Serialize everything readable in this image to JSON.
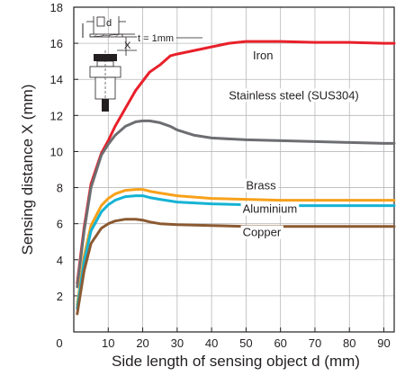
{
  "chart_data": {
    "type": "line",
    "title": "",
    "xlabel": "Side length of sensing object d (mm)",
    "ylabel": "Sensing distance X (mm)",
    "xlim": [
      0,
      93
    ],
    "ylim": [
      0,
      18
    ],
    "x_ticks": [
      0,
      10,
      20,
      30,
      40,
      50,
      60,
      70,
      80,
      90
    ],
    "y_ticks": [
      2,
      4,
      6,
      8,
      10,
      12,
      14,
      16,
      18
    ],
    "grid": true,
    "legend": "none",
    "series": [
      {
        "name": "Iron",
        "color": "#e8202a",
        "x": [
          1,
          3,
          5,
          8,
          10,
          12,
          15,
          18,
          20,
          22,
          25,
          28,
          30,
          35,
          40,
          45,
          50,
          55,
          60,
          70,
          80,
          90,
          93
        ],
        "y": [
          2.7,
          5.8,
          8.2,
          9.9,
          10.6,
          11.4,
          12.4,
          13.4,
          13.9,
          14.4,
          14.8,
          15.3,
          15.4,
          15.6,
          15.8,
          16.0,
          16.1,
          16.1,
          16.1,
          16.05,
          16.05,
          16.0,
          16.0
        ]
      },
      {
        "name": "Stainless steel (SUS304)",
        "color": "#6d6e71",
        "x": [
          1,
          3,
          5,
          8,
          10,
          12,
          15,
          18,
          20,
          22,
          25,
          28,
          30,
          35,
          40,
          50,
          60,
          70,
          80,
          90,
          93
        ],
        "y": [
          2.5,
          5.6,
          8.0,
          9.8,
          10.4,
          10.9,
          11.4,
          11.65,
          11.7,
          11.7,
          11.6,
          11.4,
          11.2,
          10.9,
          10.75,
          10.65,
          10.6,
          10.55,
          10.5,
          10.45,
          10.45
        ]
      },
      {
        "name": "Brass",
        "color": "#f7a11a",
        "x": [
          1,
          3,
          5,
          8,
          10,
          12,
          15,
          18,
          20,
          22,
          25,
          30,
          40,
          50,
          60,
          70,
          80,
          90,
          93
        ],
        "y": [
          1.5,
          4.2,
          5.9,
          7.0,
          7.4,
          7.65,
          7.85,
          7.9,
          7.9,
          7.8,
          7.7,
          7.55,
          7.4,
          7.35,
          7.3,
          7.3,
          7.3,
          7.3,
          7.3
        ]
      },
      {
        "name": "Aluminium",
        "color": "#15b3d4",
        "x": [
          1,
          3,
          5,
          8,
          10,
          12,
          15,
          18,
          20,
          22,
          25,
          30,
          40,
          50,
          60,
          70,
          80,
          90,
          93
        ],
        "y": [
          1.3,
          3.9,
          5.6,
          6.65,
          7.05,
          7.3,
          7.5,
          7.55,
          7.55,
          7.45,
          7.35,
          7.2,
          7.1,
          7.05,
          7.0,
          7.0,
          7.0,
          7.0,
          7.0
        ]
      },
      {
        "name": "Copper",
        "color": "#8b5a32",
        "x": [
          1,
          3,
          5,
          8,
          10,
          12,
          15,
          18,
          20,
          22,
          25,
          30,
          40,
          50,
          60,
          70,
          80,
          90,
          93
        ],
        "y": [
          1.0,
          3.4,
          4.9,
          5.75,
          6.0,
          6.15,
          6.25,
          6.25,
          6.2,
          6.1,
          6.0,
          5.95,
          5.9,
          5.85,
          5.85,
          5.85,
          5.85,
          5.85,
          5.85
        ]
      }
    ],
    "annotations": [
      {
        "text": "Iron",
        "x": 52,
        "y": 15.1
      },
      {
        "text": "Stainless steel (SUS304)",
        "x": 45,
        "y": 12.9
      },
      {
        "text": "Brass",
        "x": 50,
        "y": 7.9
      },
      {
        "text": "Aluminium",
        "x": 49,
        "y": 6.6
      },
      {
        "text": "Copper",
        "x": 49,
        "y": 5.3
      }
    ],
    "diagram_labels": {
      "d": "d",
      "x": "X",
      "t": "t = 1mm"
    }
  }
}
